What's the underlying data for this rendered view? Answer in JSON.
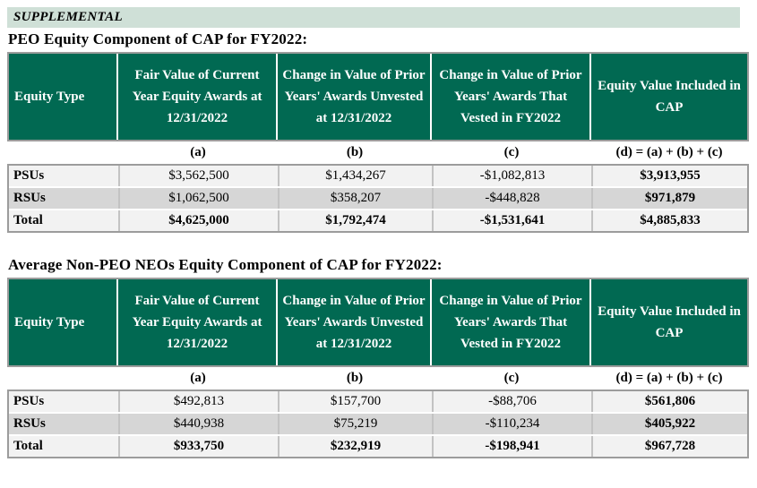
{
  "supplemental_label": "SUPPLEMENTAL",
  "colors": {
    "header_green": "#016952",
    "band_green": "#cfe0d7",
    "row_light": "#f2f2f2",
    "row_dark": "#d6d6d6",
    "border_gray": "#9c9c9c"
  },
  "tables": [
    {
      "title": "PEO Equity Component of CAP for FY2022:",
      "columns": [
        "Equity Type",
        "Fair Value of Current Year Equity Awards at 12/31/2022",
        "Change in Value of Prior Years' Awards Unvested at 12/31/2022",
        "Change in Value of Prior Years' Awards That Vested in FY2022",
        "Equity Value Included in CAP"
      ],
      "labels": [
        "(a)",
        "(b)",
        "(c)",
        "(d) = (a) + (b) + (c)"
      ],
      "rows": [
        {
          "type": "PSUs",
          "a": "$3,562,500",
          "b": "$1,434,267",
          "c": "-$1,082,813",
          "d": "$3,913,955"
        },
        {
          "type": "RSUs",
          "a": "$1,062,500",
          "b": "$358,207",
          "c": "-$448,828",
          "d": "$971,879"
        },
        {
          "type": "Total",
          "a": "$4,625,000",
          "b": "$1,792,474",
          "c": "-$1,531,641",
          "d": "$4,885,833"
        }
      ]
    },
    {
      "title": "Average Non-PEO NEOs Equity Component of CAP for FY2022:",
      "columns": [
        "Equity Type",
        "Fair Value of Current Year Equity Awards at 12/31/2022",
        "Change in Value of Prior Years' Awards Unvested at 12/31/2022",
        "Change in Value of Prior Years' Awards That Vested in FY2022",
        "Equity Value Included in CAP"
      ],
      "labels": [
        "(a)",
        "(b)",
        "(c)",
        "(d) = (a) + (b) + (c)"
      ],
      "rows": [
        {
          "type": "PSUs",
          "a": "$492,813",
          "b": "$157,700",
          "c": "-$88,706",
          "d": "$561,806"
        },
        {
          "type": "RSUs",
          "a": "$440,938",
          "b": "$75,219",
          "c": "-$110,234",
          "d": "$405,922"
        },
        {
          "type": "Total",
          "a": "$933,750",
          "b": "$232,919",
          "c": "-$198,941",
          "d": "$967,728"
        }
      ]
    }
  ]
}
